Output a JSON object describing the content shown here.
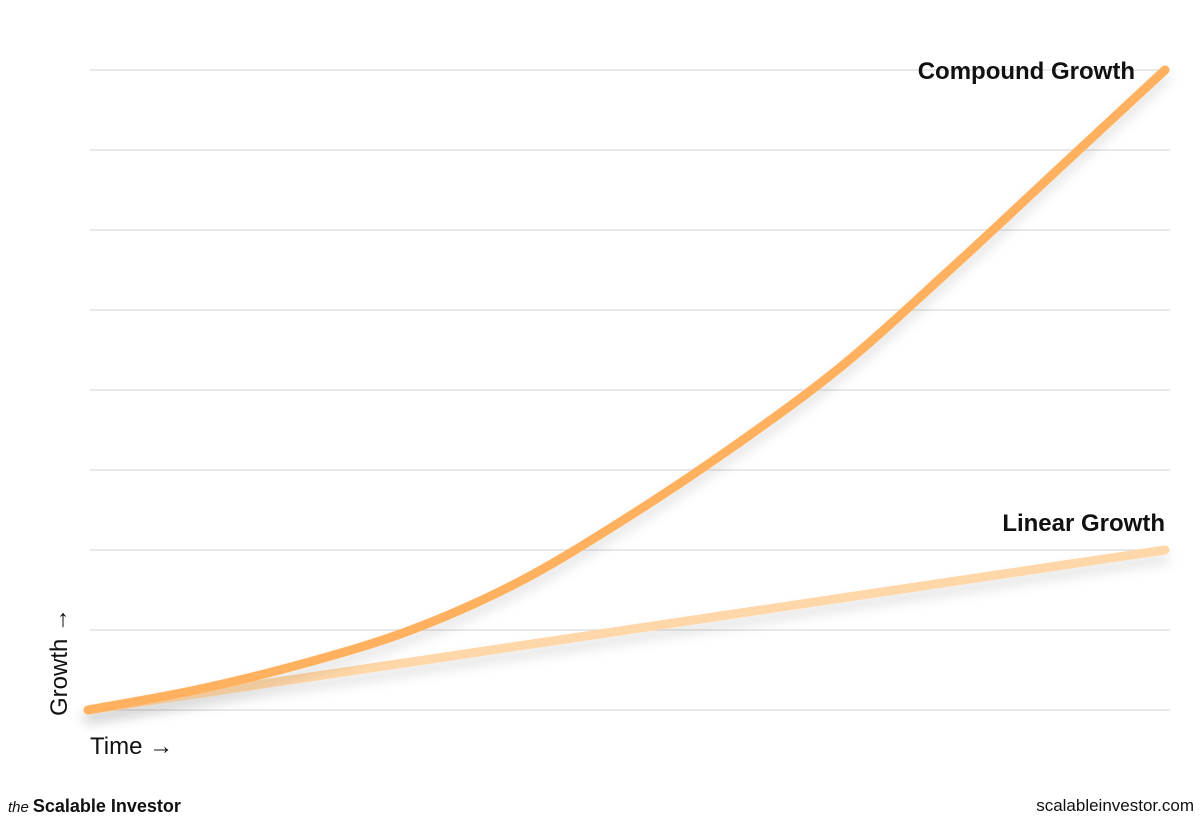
{
  "chart_data": {
    "type": "line",
    "title": "",
    "xlabel": "Time →",
    "ylabel": "Growth →",
    "x": [
      0,
      1,
      2,
      3,
      4,
      5,
      6,
      7,
      8,
      9,
      10
    ],
    "ylim": [
      0,
      8
    ],
    "grid": true,
    "gridlines": 9,
    "series": [
      {
        "name": "Compound Growth",
        "color": "#FFB15E",
        "values": [
          0,
          0.25,
          0.58,
          1.0,
          1.6,
          2.4,
          3.3,
          4.3,
          5.5,
          6.75,
          8.0
        ]
      },
      {
        "name": "Linear Growth",
        "color": "#FFD7A8",
        "values": [
          0,
          0.2,
          0.4,
          0.6,
          0.8,
          1.0,
          1.2,
          1.4,
          1.6,
          1.8,
          2.0
        ]
      }
    ]
  },
  "footer": {
    "brand_prefix": "the",
    "brand_name": "Scalable Investor",
    "website": "scalableinvestor.com"
  }
}
